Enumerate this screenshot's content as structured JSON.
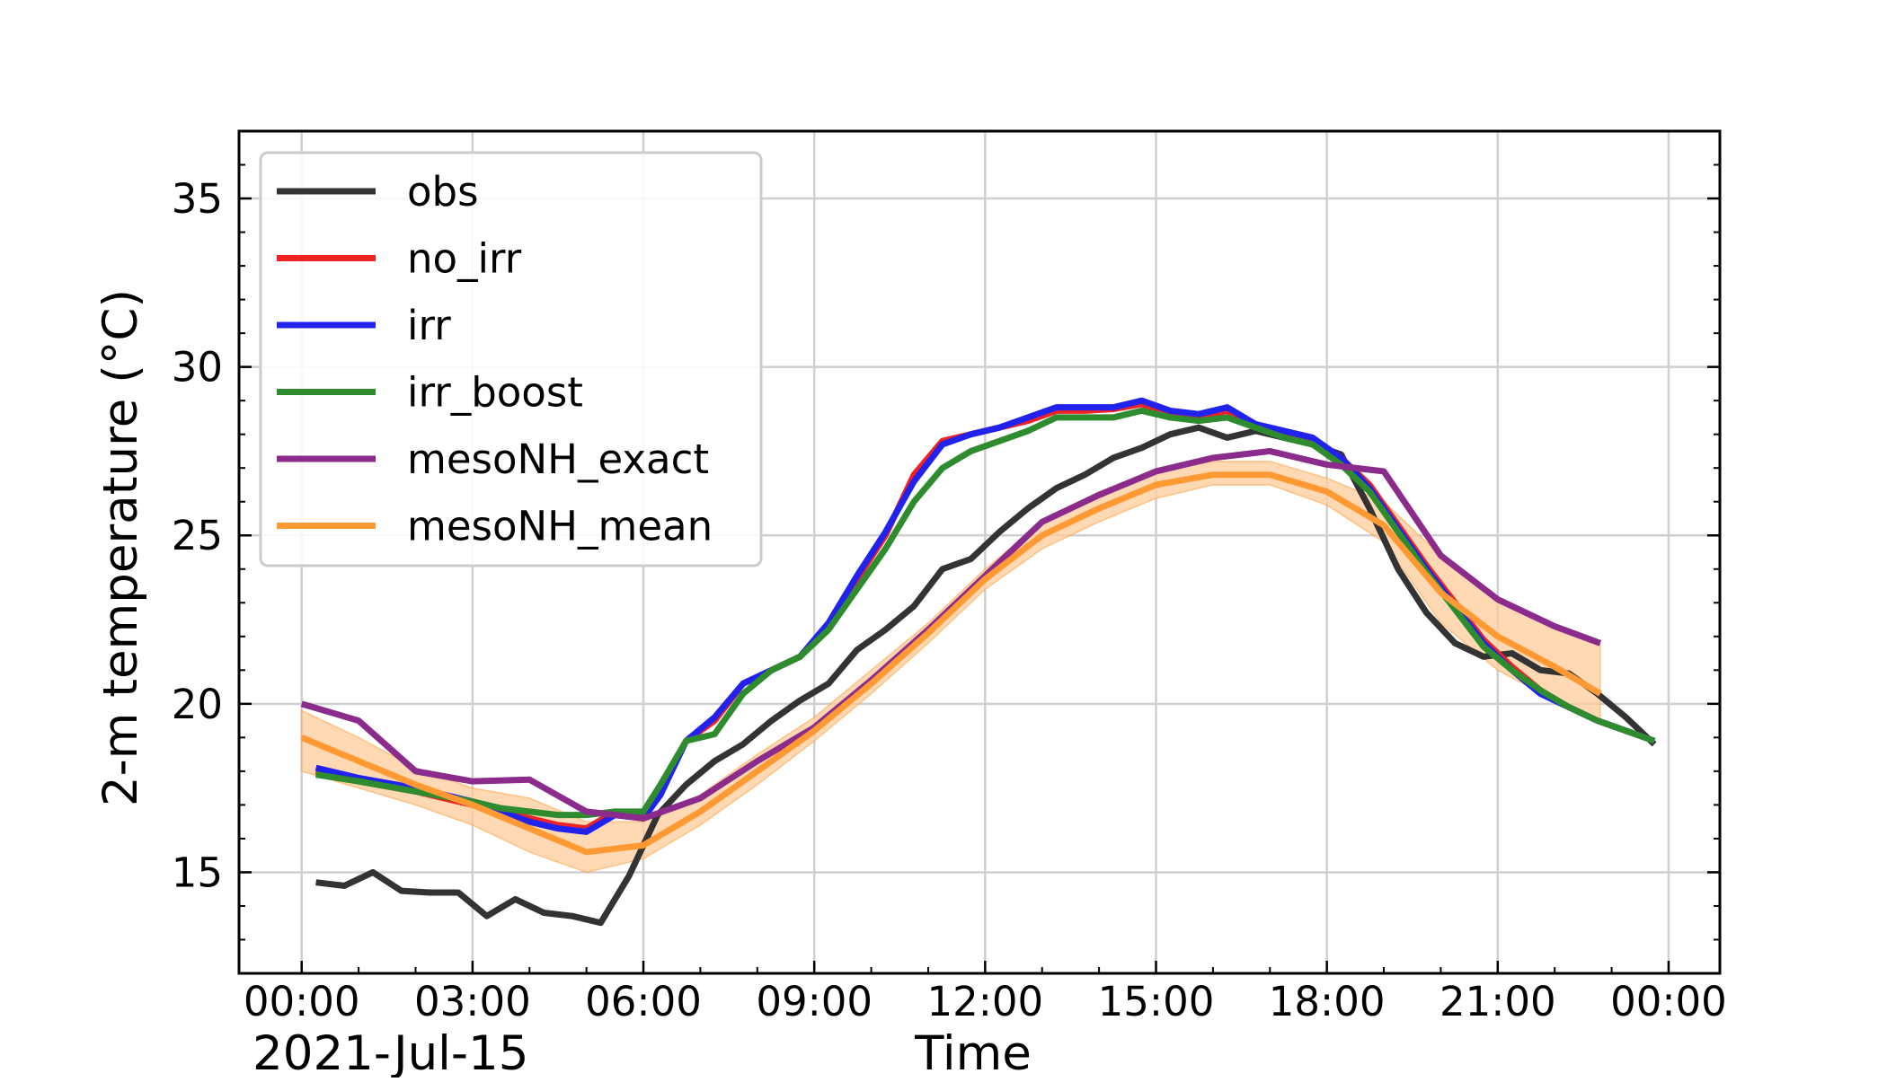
{
  "chart_data": {
    "type": "line",
    "date_label": "2021-Jul-15",
    "xlabel": "Time",
    "ylabel": "2-m temperature (°C)",
    "x_unit": "hours since 2021-07-15 00:00",
    "xlim": [
      -1.1,
      24.9
    ],
    "ylim": [
      12.0,
      37.0
    ],
    "x_ticks": [
      {
        "value": 0,
        "label": "00:00"
      },
      {
        "value": 3,
        "label": "03:00"
      },
      {
        "value": 6,
        "label": "06:00"
      },
      {
        "value": 9,
        "label": "09:00"
      },
      {
        "value": 12,
        "label": "12:00"
      },
      {
        "value": 15,
        "label": "15:00"
      },
      {
        "value": 18,
        "label": "18:00"
      },
      {
        "value": 21,
        "label": "21:00"
      },
      {
        "value": 24,
        "label": "00:00"
      }
    ],
    "y_ticks": [
      {
        "value": 15,
        "label": "15"
      },
      {
        "value": 20,
        "label": "20"
      },
      {
        "value": 25,
        "label": "25"
      },
      {
        "value": 30,
        "label": "30"
      },
      {
        "value": 35,
        "label": "35"
      }
    ],
    "grid": true,
    "legend_position": "upper-left",
    "series": [
      {
        "name": "obs",
        "color": "#333333",
        "points": [
          [
            0.25,
            14.7
          ],
          [
            0.75,
            14.6
          ],
          [
            1.25,
            15.0
          ],
          [
            1.75,
            14.45
          ],
          [
            2.25,
            14.4
          ],
          [
            2.75,
            14.4
          ],
          [
            3.25,
            13.7
          ],
          [
            3.75,
            14.2
          ],
          [
            4.25,
            13.8
          ],
          [
            4.75,
            13.7
          ],
          [
            5.25,
            13.5
          ],
          [
            5.75,
            14.9
          ],
          [
            6.25,
            16.7
          ],
          [
            6.75,
            17.6
          ],
          [
            7.25,
            18.3
          ],
          [
            7.75,
            18.8
          ],
          [
            8.25,
            19.5
          ],
          [
            8.75,
            20.1
          ],
          [
            9.25,
            20.6
          ],
          [
            9.75,
            21.6
          ],
          [
            10.25,
            22.2
          ],
          [
            10.75,
            22.9
          ],
          [
            11.25,
            24.0
          ],
          [
            11.75,
            24.3
          ],
          [
            12.25,
            25.1
          ],
          [
            12.75,
            25.8
          ],
          [
            13.25,
            26.4
          ],
          [
            13.75,
            26.8
          ],
          [
            14.25,
            27.3
          ],
          [
            14.75,
            27.6
          ],
          [
            15.25,
            28.0
          ],
          [
            15.75,
            28.2
          ],
          [
            16.25,
            27.9
          ],
          [
            16.75,
            28.1
          ],
          [
            17.25,
            27.9
          ],
          [
            17.75,
            27.7
          ],
          [
            18.25,
            27.4
          ],
          [
            18.75,
            25.8
          ],
          [
            19.25,
            24.0
          ],
          [
            19.75,
            22.7
          ],
          [
            20.25,
            21.8
          ],
          [
            20.75,
            21.4
          ],
          [
            21.25,
            21.5
          ],
          [
            21.75,
            21.0
          ],
          [
            22.25,
            20.9
          ],
          [
            22.75,
            20.3
          ],
          [
            23.25,
            19.6
          ],
          [
            23.75,
            18.8
          ]
        ]
      },
      {
        "name": "no_irr",
        "color": "#ee2222",
        "points": [
          [
            0.25,
            18.0
          ],
          [
            1.0,
            17.7
          ],
          [
            2.0,
            17.4
          ],
          [
            3.0,
            17.0
          ],
          [
            3.5,
            16.8
          ],
          [
            4.0,
            16.6
          ],
          [
            4.5,
            16.4
          ],
          [
            5.0,
            16.3
          ],
          [
            5.5,
            16.8
          ],
          [
            6.0,
            16.7
          ],
          [
            6.3,
            17.4
          ],
          [
            6.75,
            18.9
          ],
          [
            7.25,
            19.5
          ],
          [
            7.75,
            20.6
          ],
          [
            8.25,
            21.0
          ],
          [
            8.75,
            21.4
          ],
          [
            9.25,
            22.3
          ],
          [
            9.75,
            23.7
          ],
          [
            10.25,
            25.0
          ],
          [
            10.75,
            26.8
          ],
          [
            11.25,
            27.8
          ],
          [
            11.75,
            28.0
          ],
          [
            12.25,
            28.2
          ],
          [
            12.75,
            28.4
          ],
          [
            13.25,
            28.7
          ],
          [
            13.75,
            28.7
          ],
          [
            14.25,
            28.75
          ],
          [
            14.75,
            28.9
          ],
          [
            15.25,
            28.6
          ],
          [
            15.75,
            28.5
          ],
          [
            16.25,
            28.7
          ],
          [
            16.75,
            28.2
          ],
          [
            17.25,
            28.0
          ],
          [
            17.75,
            27.8
          ],
          [
            18.25,
            27.3
          ],
          [
            18.75,
            26.5
          ],
          [
            19.25,
            25.3
          ],
          [
            19.75,
            24.1
          ],
          [
            20.25,
            23.0
          ],
          [
            20.75,
            21.9
          ],
          [
            21.25,
            21.1
          ],
          [
            21.75,
            20.4
          ],
          [
            22.25,
            19.9
          ],
          [
            22.75,
            19.5
          ],
          [
            23.25,
            19.2
          ],
          [
            23.75,
            18.9
          ]
        ]
      },
      {
        "name": "irr",
        "color": "#2222ee",
        "points": [
          [
            0.25,
            18.1
          ],
          [
            1.0,
            17.8
          ],
          [
            2.0,
            17.5
          ],
          [
            3.0,
            17.1
          ],
          [
            3.5,
            16.8
          ],
          [
            4.0,
            16.5
          ],
          [
            4.5,
            16.3
          ],
          [
            5.0,
            16.2
          ],
          [
            5.5,
            16.7
          ],
          [
            6.0,
            16.6
          ],
          [
            6.3,
            17.3
          ],
          [
            6.75,
            18.9
          ],
          [
            7.25,
            19.6
          ],
          [
            7.75,
            20.6
          ],
          [
            8.25,
            21.0
          ],
          [
            8.75,
            21.4
          ],
          [
            9.25,
            22.4
          ],
          [
            9.75,
            23.8
          ],
          [
            10.25,
            25.1
          ],
          [
            10.75,
            26.6
          ],
          [
            11.25,
            27.7
          ],
          [
            11.75,
            28.0
          ],
          [
            12.25,
            28.2
          ],
          [
            12.75,
            28.5
          ],
          [
            13.25,
            28.8
          ],
          [
            13.75,
            28.8
          ],
          [
            14.25,
            28.8
          ],
          [
            14.75,
            29.0
          ],
          [
            15.25,
            28.7
          ],
          [
            15.75,
            28.6
          ],
          [
            16.25,
            28.8
          ],
          [
            16.75,
            28.3
          ],
          [
            17.25,
            28.1
          ],
          [
            17.75,
            27.9
          ],
          [
            18.25,
            27.3
          ],
          [
            18.75,
            26.4
          ],
          [
            19.25,
            25.2
          ],
          [
            19.75,
            24.0
          ],
          [
            20.25,
            22.9
          ],
          [
            20.75,
            21.8
          ],
          [
            21.25,
            21.0
          ],
          [
            21.75,
            20.3
          ],
          [
            22.25,
            19.9
          ],
          [
            22.75,
            19.5
          ],
          [
            23.25,
            19.2
          ],
          [
            23.75,
            18.9
          ]
        ]
      },
      {
        "name": "irr_boost",
        "color": "#2e8b2e",
        "points": [
          [
            0.25,
            17.9
          ],
          [
            1.0,
            17.7
          ],
          [
            2.0,
            17.4
          ],
          [
            3.0,
            17.1
          ],
          [
            3.5,
            16.9
          ],
          [
            4.0,
            16.8
          ],
          [
            4.5,
            16.7
          ],
          [
            5.0,
            16.7
          ],
          [
            5.5,
            16.8
          ],
          [
            6.0,
            16.8
          ],
          [
            6.3,
            17.6
          ],
          [
            6.75,
            18.9
          ],
          [
            7.25,
            19.1
          ],
          [
            7.75,
            20.3
          ],
          [
            8.25,
            21.0
          ],
          [
            8.75,
            21.4
          ],
          [
            9.25,
            22.2
          ],
          [
            9.75,
            23.4
          ],
          [
            10.25,
            24.6
          ],
          [
            10.75,
            26.0
          ],
          [
            11.25,
            27.0
          ],
          [
            11.75,
            27.5
          ],
          [
            12.25,
            27.8
          ],
          [
            12.75,
            28.1
          ],
          [
            13.25,
            28.5
          ],
          [
            13.75,
            28.5
          ],
          [
            14.25,
            28.5
          ],
          [
            14.75,
            28.7
          ],
          [
            15.25,
            28.5
          ],
          [
            15.75,
            28.4
          ],
          [
            16.25,
            28.5
          ],
          [
            16.75,
            28.2
          ],
          [
            17.25,
            27.9
          ],
          [
            17.75,
            27.7
          ],
          [
            18.25,
            27.1
          ],
          [
            18.75,
            26.3
          ],
          [
            19.25,
            25.1
          ],
          [
            19.75,
            23.9
          ],
          [
            20.25,
            22.8
          ],
          [
            20.75,
            21.7
          ],
          [
            21.25,
            21.0
          ],
          [
            21.75,
            20.4
          ],
          [
            22.25,
            19.9
          ],
          [
            22.75,
            19.5
          ],
          [
            23.25,
            19.2
          ],
          [
            23.75,
            18.9
          ]
        ]
      },
      {
        "name": "mesoNH_exact",
        "color": "#8b2b8b",
        "points": [
          [
            0.0,
            20.0
          ],
          [
            1.0,
            19.5
          ],
          [
            2.0,
            18.0
          ],
          [
            3.0,
            17.7
          ],
          [
            4.0,
            17.75
          ],
          [
            5.0,
            16.8
          ],
          [
            6.0,
            16.6
          ],
          [
            7.0,
            17.2
          ],
          [
            8.0,
            18.3
          ],
          [
            9.0,
            19.3
          ],
          [
            10.0,
            20.7
          ],
          [
            11.0,
            22.2
          ],
          [
            12.0,
            23.8
          ],
          [
            13.0,
            25.4
          ],
          [
            14.0,
            26.2
          ],
          [
            15.0,
            26.9
          ],
          [
            16.0,
            27.3
          ],
          [
            17.0,
            27.5
          ],
          [
            18.0,
            27.1
          ],
          [
            19.0,
            26.9
          ],
          [
            20.0,
            24.4
          ],
          [
            21.0,
            23.1
          ],
          [
            22.0,
            22.3
          ],
          [
            22.8,
            21.8
          ]
        ]
      },
      {
        "name": "mesoNH_mean",
        "color": "#ff9933",
        "band_color": "#ffcc99",
        "points": [
          [
            0.0,
            19.0
          ],
          [
            1.0,
            18.3
          ],
          [
            2.0,
            17.6
          ],
          [
            3.0,
            17.0
          ],
          [
            4.0,
            16.3
          ],
          [
            5.0,
            15.6
          ],
          [
            6.0,
            15.8
          ],
          [
            7.0,
            16.8
          ],
          [
            8.0,
            18.0
          ],
          [
            9.0,
            19.2
          ],
          [
            10.0,
            20.6
          ],
          [
            11.0,
            22.1
          ],
          [
            12.0,
            23.7
          ],
          [
            13.0,
            25.0
          ],
          [
            14.0,
            25.8
          ],
          [
            15.0,
            26.5
          ],
          [
            16.0,
            26.8
          ],
          [
            17.0,
            26.8
          ],
          [
            18.0,
            26.3
          ],
          [
            19.0,
            25.3
          ],
          [
            20.0,
            23.3
          ],
          [
            21.0,
            22.0
          ],
          [
            22.0,
            21.1
          ],
          [
            22.8,
            20.3
          ]
        ],
        "band_upper": [
          19.8,
          19.0,
          18.1,
          17.5,
          17.2,
          16.5,
          16.5,
          17.3,
          18.5,
          19.6,
          21.0,
          22.4,
          24.0,
          25.4,
          26.3,
          26.9,
          27.2,
          27.2,
          26.7,
          26.0,
          24.4,
          23.1,
          22.3,
          21.8
        ],
        "band_lower": [
          18.0,
          17.5,
          17.0,
          16.4,
          15.6,
          15.0,
          15.4,
          16.4,
          17.6,
          18.9,
          20.3,
          21.8,
          23.4,
          24.6,
          25.4,
          26.1,
          26.5,
          26.5,
          25.9,
          24.8,
          22.4,
          21.0,
          20.1,
          19.5
        ]
      }
    ]
  }
}
